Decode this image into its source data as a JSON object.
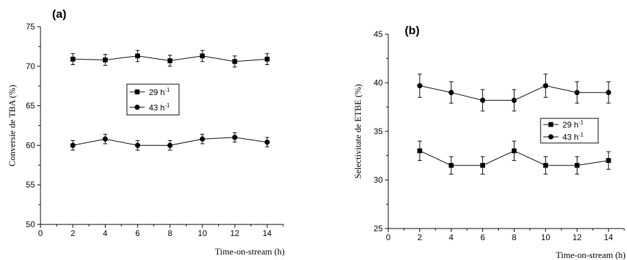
{
  "chart_data": [
    {
      "type": "line",
      "panel_label": "(a)",
      "xlabel": "Time-on-stream (h)",
      "ylabel": "Conversie de TBA (%)",
      "xlim": [
        0,
        15
      ],
      "ylim": [
        50,
        75
      ],
      "xticks": [
        0,
        2,
        4,
        6,
        8,
        10,
        12,
        14
      ],
      "yticks": [
        50,
        55,
        60,
        65,
        70,
        75
      ],
      "grid": false,
      "legend": "center",
      "series": [
        {
          "name": "29 h",
          "name_superscript": "-1",
          "marker": "square",
          "x": [
            2,
            4,
            6,
            8,
            10,
            12,
            14
          ],
          "y": [
            70.9,
            70.8,
            71.3,
            70.7,
            71.3,
            70.6,
            70.9
          ],
          "error": [
            0.7,
            0.7,
            0.7,
            0.7,
            0.7,
            0.7,
            0.7
          ]
        },
        {
          "name": "43 h",
          "name_superscript": "-1",
          "marker": "circle",
          "x": [
            2,
            4,
            6,
            8,
            10,
            12,
            14
          ],
          "y": [
            60.0,
            60.8,
            60.0,
            60.0,
            60.8,
            61.0,
            60.4
          ],
          "error": [
            0.6,
            0.6,
            0.6,
            0.6,
            0.6,
            0.6,
            0.6
          ]
        }
      ]
    },
    {
      "type": "line",
      "panel_label": "(b)",
      "xlabel": "Time-on-stream (h)",
      "ylabel": "Selectivitate de ETBE (%)",
      "xlim": [
        0,
        15
      ],
      "ylim": [
        25,
        45
      ],
      "xticks": [
        0,
        2,
        4,
        6,
        8,
        10,
        12,
        14
      ],
      "yticks": [
        25,
        30,
        35,
        40,
        45
      ],
      "grid": false,
      "legend": "center-right",
      "series": [
        {
          "name": "29 h",
          "name_superscript": "-1",
          "marker": "square",
          "x": [
            2,
            4,
            6,
            8,
            10,
            12,
            14
          ],
          "y": [
            33.0,
            31.5,
            31.5,
            33.0,
            31.5,
            31.5,
            32.0
          ],
          "error": [
            1.0,
            0.9,
            0.9,
            1.0,
            0.9,
            0.9,
            0.9
          ]
        },
        {
          "name": "43 h",
          "name_superscript": "-1",
          "marker": "circle",
          "x": [
            2,
            4,
            6,
            8,
            10,
            12,
            14
          ],
          "y": [
            39.7,
            39.0,
            38.2,
            38.2,
            39.7,
            39.0,
            39.0
          ],
          "error": [
            1.2,
            1.1,
            1.1,
            1.1,
            1.2,
            1.1,
            1.1
          ]
        }
      ]
    }
  ]
}
